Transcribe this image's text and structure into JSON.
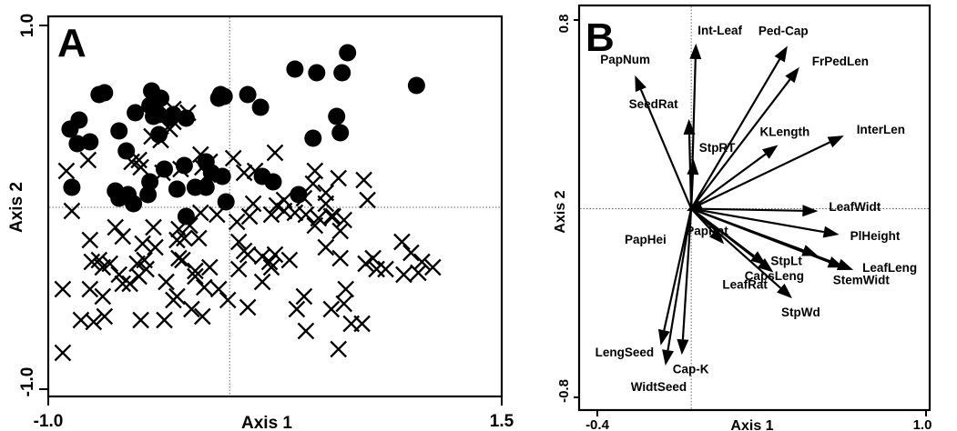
{
  "chart_data": [
    {
      "type": "scatter",
      "panel_label": "A",
      "xlabel": "Axis 1",
      "ylabel": "Axis 2",
      "xlim": [
        -1.0,
        1.5
      ],
      "ylim": [
        -1.0,
        1.0
      ],
      "x_tick_labels": [
        "-1.0",
        "1.5"
      ],
      "y_tick_labels": [
        "1.0",
        "-1.0"
      ],
      "zero_lines": true,
      "series": [
        {
          "marker": "filled-circle",
          "color": "#000000",
          "points": [
            [
              -0.43,
              0.64
            ],
            [
              -0.69,
              0.63
            ],
            [
              -0.83,
              0.48
            ],
            [
              -0.84,
              0.35
            ],
            [
              -0.77,
              0.36
            ],
            [
              -0.88,
              0.43
            ],
            [
              -0.72,
              0.62
            ],
            [
              -0.61,
              0.42
            ],
            [
              -0.44,
              0.56
            ],
            [
              -0.52,
              0.52
            ],
            [
              -0.57,
              0.31
            ],
            [
              -0.41,
              0.54
            ],
            [
              -0.42,
              0.5
            ],
            [
              -0.33,
              0.49
            ],
            [
              -0.39,
              0.4
            ],
            [
              -0.24,
              0.49
            ],
            [
              -0.31,
              0.51
            ],
            [
              -0.39,
              0.51
            ],
            [
              -0.38,
              0.6
            ],
            [
              -0.05,
              0.62
            ],
            [
              -0.06,
              0.6
            ],
            [
              -0.03,
              0.61
            ],
            [
              0.1,
              0.62
            ],
            [
              0.17,
              0.55
            ],
            [
              0.36,
              0.76
            ],
            [
              0.48,
              0.74
            ],
            [
              0.62,
              0.74
            ],
            [
              0.65,
              0.85
            ],
            [
              1.03,
              0.67
            ],
            [
              0.59,
              0.5
            ],
            [
              0.61,
              0.41
            ],
            [
              0.46,
              0.38
            ],
            [
              0.18,
              0.17
            ],
            [
              0.24,
              0.14
            ],
            [
              -0.13,
              0.11
            ],
            [
              -0.19,
              0.11
            ],
            [
              -0.02,
              0.03
            ],
            [
              -0.04,
              0.17
            ],
            [
              -0.1,
              0.19
            ],
            [
              -0.13,
              0.25
            ],
            [
              -0.29,
              0.1
            ],
            [
              -0.36,
              0.21
            ],
            [
              -0.25,
              0.23
            ],
            [
              -0.24,
              -0.05
            ],
            [
              -0.45,
              0.07
            ],
            [
              -0.53,
              0.02
            ],
            [
              -0.56,
              0.07
            ],
            [
              -0.61,
              0.05
            ],
            [
              -0.63,
              0.09
            ],
            [
              -0.87,
              0.11
            ],
            [
              -0.57,
              0.06
            ],
            [
              0.38,
              0.07
            ],
            [
              -0.44,
              0.14
            ]
          ]
        },
        {
          "marker": "x-cross",
          "color": "#000000",
          "points": [
            [
              -0.31,
              0.54
            ],
            [
              -0.23,
              0.52
            ],
            [
              -0.31,
              0.47
            ],
            [
              -0.33,
              0.43
            ],
            [
              -0.43,
              0.39
            ],
            [
              -0.38,
              0.37
            ],
            [
              -0.5,
              0.26
            ],
            [
              -0.49,
              0.22
            ],
            [
              -0.54,
              0.25
            ],
            [
              -0.37,
              0.19
            ],
            [
              -0.27,
              0.21
            ],
            [
              -0.16,
              0.29
            ],
            [
              -0.15,
              0.22
            ],
            [
              -0.11,
              0.25
            ],
            [
              -0.12,
              0.18
            ],
            [
              0.02,
              0.27
            ],
            [
              0.08,
              0.19
            ],
            [
              0.14,
              0.2
            ],
            [
              0.25,
              0.3
            ],
            [
              0.46,
              0.13
            ],
            [
              0.47,
              0.2
            ],
            [
              0.6,
              0.16
            ],
            [
              0.76,
              0.04
            ],
            [
              0.74,
              0.15
            ],
            [
              0.53,
              0.08
            ],
            [
              0.53,
              0.02
            ],
            [
              0.56,
              -0.05
            ],
            [
              0.49,
              -0.06
            ],
            [
              0.63,
              -0.07
            ],
            [
              0.61,
              -0.13
            ],
            [
              0.47,
              -0.1
            ],
            [
              0.23,
              -0.04
            ],
            [
              0.26,
              0.01
            ],
            [
              0.3,
              -0.02
            ],
            [
              0.3,
              0.04
            ],
            [
              0.36,
              -0.03
            ],
            [
              0.11,
              -0.05
            ],
            [
              0.04,
              -0.08
            ],
            [
              0.13,
              0.02
            ],
            [
              0.41,
              0.05
            ],
            [
              0.42,
              -0.04
            ],
            [
              0.57,
              -0.05
            ],
            [
              -0.07,
              -0.04
            ],
            [
              -0.16,
              -0.03
            ],
            [
              -0.22,
              -0.1
            ],
            [
              -0.28,
              -0.12
            ],
            [
              -0.42,
              -0.11
            ],
            [
              -0.59,
              -0.16
            ],
            [
              -0.63,
              -0.11
            ],
            [
              -0.77,
              -0.18
            ],
            [
              -0.87,
              -0.02
            ],
            [
              -0.9,
              0.2
            ],
            [
              -0.78,
              0.26
            ],
            [
              -0.72,
              -0.29
            ],
            [
              -0.76,
              -0.3
            ],
            [
              -0.55,
              -0.42
            ],
            [
              -0.5,
              -0.38
            ],
            [
              -0.47,
              -0.29
            ],
            [
              -0.35,
              -0.41
            ],
            [
              -0.28,
              -0.28
            ],
            [
              -0.26,
              -0.29
            ],
            [
              -0.19,
              -0.35
            ],
            [
              -0.19,
              -0.38
            ],
            [
              -0.11,
              -0.33
            ],
            [
              -0.06,
              -0.45
            ],
            [
              -0.15,
              -0.6
            ],
            [
              -0.21,
              -0.56
            ],
            [
              -0.36,
              -0.62
            ],
            [
              -0.49,
              -0.62
            ],
            [
              -0.75,
              -0.63
            ],
            [
              -0.7,
              -0.49
            ],
            [
              -0.69,
              -0.6
            ],
            [
              -0.82,
              -0.62
            ],
            [
              -0.92,
              -0.8
            ],
            [
              -0.92,
              -0.45
            ],
            [
              -0.77,
              -0.45
            ],
            [
              -0.7,
              -0.33
            ],
            [
              -0.61,
              -0.37
            ],
            [
              -0.59,
              -0.42
            ],
            [
              -0.41,
              -0.22
            ],
            [
              0.08,
              -0.24
            ],
            [
              0.05,
              -0.34
            ],
            [
              0.18,
              -0.41
            ],
            [
              0.23,
              -0.33
            ],
            [
              0.1,
              -0.55
            ],
            [
              0.37,
              -0.56
            ],
            [
              0.41,
              -0.49
            ],
            [
              0.56,
              -0.56
            ],
            [
              0.63,
              -0.53
            ],
            [
              0.42,
              -0.68
            ],
            [
              0.6,
              -0.78
            ],
            [
              0.67,
              -0.64
            ],
            [
              0.73,
              -0.64
            ],
            [
              0.64,
              -0.45
            ],
            [
              0.33,
              -0.29
            ],
            [
              0.53,
              -0.22
            ],
            [
              0.61,
              -0.28
            ],
            [
              0.75,
              -0.31
            ],
            [
              0.79,
              -0.28
            ],
            [
              0.81,
              -0.34
            ],
            [
              0.86,
              -0.34
            ],
            [
              0.95,
              -0.19
            ],
            [
              1.0,
              -0.25
            ],
            [
              1.06,
              -0.3
            ],
            [
              1.04,
              -0.36
            ],
            [
              0.96,
              -0.37
            ],
            [
              1.12,
              -0.33
            ],
            [
              0.1,
              -0.26
            ],
            [
              0.18,
              -0.27
            ],
            [
              0.22,
              -0.3
            ],
            [
              0.05,
              -0.19
            ],
            [
              -0.48,
              -0.2
            ],
            [
              -0.29,
              -0.49
            ],
            [
              -0.31,
              -0.51
            ],
            [
              -0.01,
              -0.51
            ],
            [
              -0.66,
              -0.31
            ],
            [
              -0.51,
              -0.31
            ],
            [
              -0.17,
              -0.17
            ],
            [
              -0.25,
              -0.17
            ],
            [
              -0.29,
              -0.18
            ],
            [
              -0.46,
              -0.34
            ],
            [
              -0.14,
              -0.44
            ],
            [
              0.25,
              -0.26
            ]
          ]
        }
      ]
    },
    {
      "type": "biplot",
      "panel_label": "B",
      "xlabel": "Axis 1",
      "ylabel": "Axis 2",
      "xlim": [
        -0.4,
        1.0
      ],
      "ylim": [
        -0.8,
        0.8
      ],
      "x_tick_labels": [
        "-0.4",
        "1.0"
      ],
      "y_tick_labels": [
        "0.8",
        "-0.8"
      ],
      "zero_lines": true,
      "vectors": [
        {
          "label": "Int-Leaf",
          "x": 0.02,
          "y": 0.7
        },
        {
          "label": "Ped-Cap",
          "x": 0.41,
          "y": 0.69
        },
        {
          "label": "FrPedLen",
          "x": 0.46,
          "y": 0.6
        },
        {
          "label": "PapNum",
          "x": -0.24,
          "y": 0.565
        },
        {
          "label": "SeedRat",
          "x": -0.01,
          "y": 0.38
        },
        {
          "label": "StpRT",
          "x": 0.01,
          "y": 0.21
        },
        {
          "label": "KLength",
          "x": 0.37,
          "y": 0.27
        },
        {
          "label": "InterLen",
          "x": 0.65,
          "y": 0.31
        },
        {
          "label": "LeafWidt",
          "x": 0.54,
          "y": -0.01
        },
        {
          "label": "PlHeight",
          "x": 0.63,
          "y": -0.11
        },
        {
          "label": "StpLt",
          "x": 0.54,
          "y": -0.2
        },
        {
          "label": "LeafLeng",
          "x": 0.69,
          "y": -0.26
        },
        {
          "label": "StemWidt",
          "x": 0.65,
          "y": -0.25
        },
        {
          "label": "CapsLeng",
          "x": 0.32,
          "y": -0.24
        },
        {
          "label": "LeafRat",
          "x": 0.35,
          "y": -0.27
        },
        {
          "label": "StpWd",
          "x": 0.43,
          "y": -0.38
        },
        {
          "label": "PapRat",
          "x": 0.14,
          "y": -0.15
        },
        {
          "label": "PapHei",
          "x": -0.02,
          "y": -0.01
        },
        {
          "label": "LengSeed",
          "x": -0.13,
          "y": -0.58
        },
        {
          "label": "Cap-K",
          "x": -0.04,
          "y": -0.62
        },
        {
          "label": "WidtSeed",
          "x": -0.11,
          "y": -0.665
        }
      ]
    }
  ]
}
